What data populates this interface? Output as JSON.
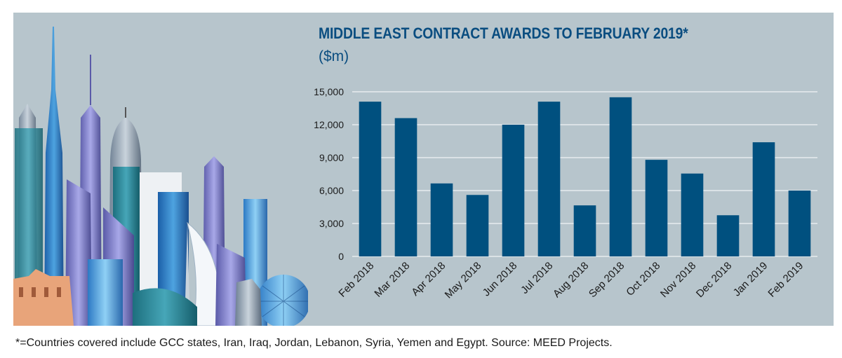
{
  "chart_data": {
    "type": "bar",
    "title": "MIDDLE EAST CONTRACT AWARDS TO FEBRUARY 2019*",
    "subtitle": "($m)",
    "xlabel": "",
    "ylabel": "",
    "categories": [
      "Feb 2018",
      "Mar 2018",
      "Apr 2018",
      "May 2018",
      "Jun 2018",
      "Jul 2018",
      "Aug 2018",
      "Sep 2018",
      "Oct 2018",
      "Nov 2018",
      "Dec 2018",
      "Jan 2019",
      "Feb 2019"
    ],
    "values": [
      14100,
      12600,
      6650,
      5600,
      12000,
      14100,
      4650,
      14500,
      8800,
      7550,
      3750,
      10400,
      6000
    ],
    "ylim": [
      0,
      15000
    ],
    "yticks": [
      0,
      3000,
      6000,
      9000,
      12000,
      15000
    ],
    "ytick_labels": [
      "0",
      "3,000",
      "6,000",
      "9,000",
      "12,000",
      "15,000"
    ],
    "grid": true,
    "bar_color": "#00507f"
  },
  "footnote": "*=Countries covered include GCC states, Iran, Iraq, Jordan, Lebanon, Syria, Yemen and Egypt. Source: MEED Projects."
}
